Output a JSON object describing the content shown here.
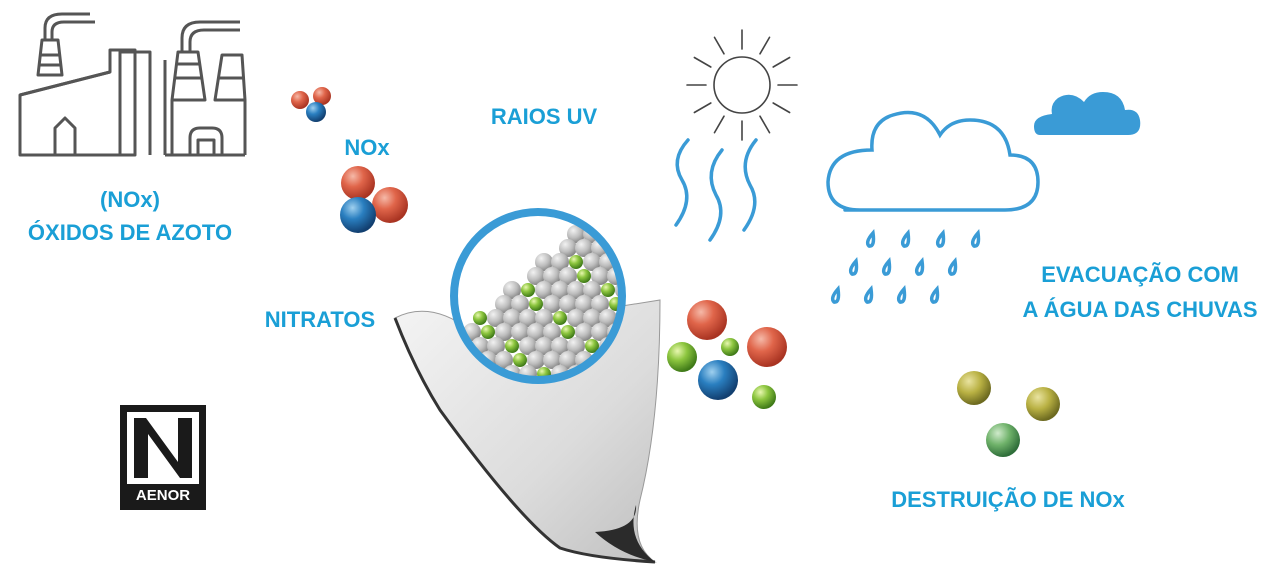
{
  "labels": {
    "nox_paren": "(NOx)",
    "oxidos": "ÓXIDOS DE AZOTO",
    "nox": "NOx",
    "raios_uv": "RAIOS UV",
    "nitratos": "NITRATOS",
    "evacuacao_1": "EVACUAÇÃO COM",
    "evacuacao_2": "A ÁGUA DAS CHUVAS",
    "destruicao": "DESTRUIÇÃO DE NOx"
  },
  "logo": {
    "text": "AENOR"
  }
}
